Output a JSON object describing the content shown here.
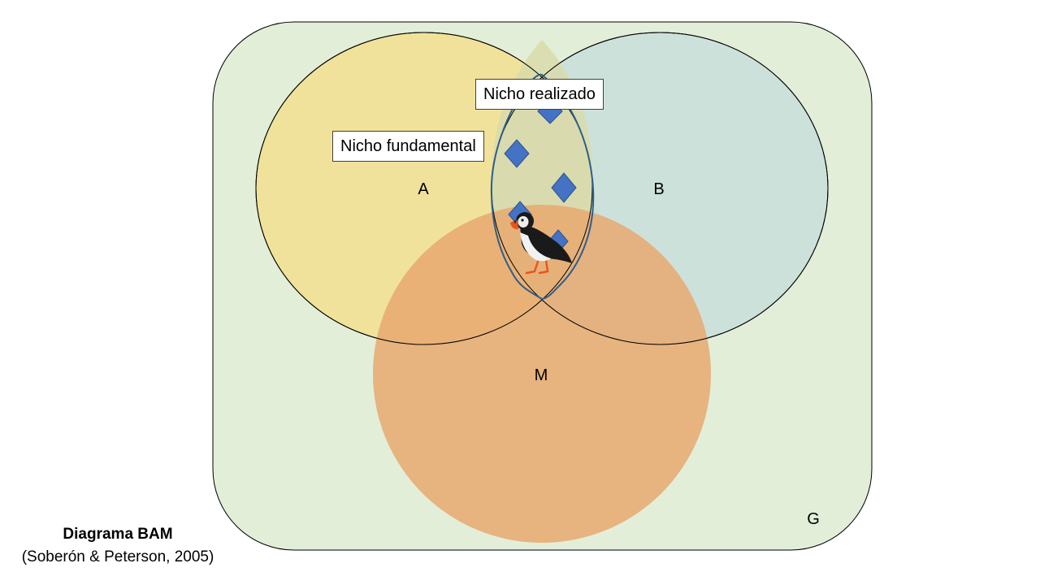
{
  "sets": {
    "a": {
      "label": "A",
      "color": "#F0E29A"
    },
    "b": {
      "label": "B",
      "color": "#BFD9DE"
    },
    "m": {
      "label": "M",
      "color": "#E8A870"
    },
    "g": {
      "label": "G",
      "color": "#E2EED8"
    }
  },
  "callouts": {
    "realized": "Nicho realizado",
    "fundamental": "Nicho fundamental"
  },
  "caption": {
    "title": "Diagrama BAM",
    "citation": "(Soberón & Peterson, 2005)"
  },
  "colors": {
    "occurrence_marker": "#4472C4",
    "niche_outline": "#2E5E8A"
  },
  "icons": {
    "species": "puffin-icon",
    "occurrence": "diamond-marker"
  }
}
